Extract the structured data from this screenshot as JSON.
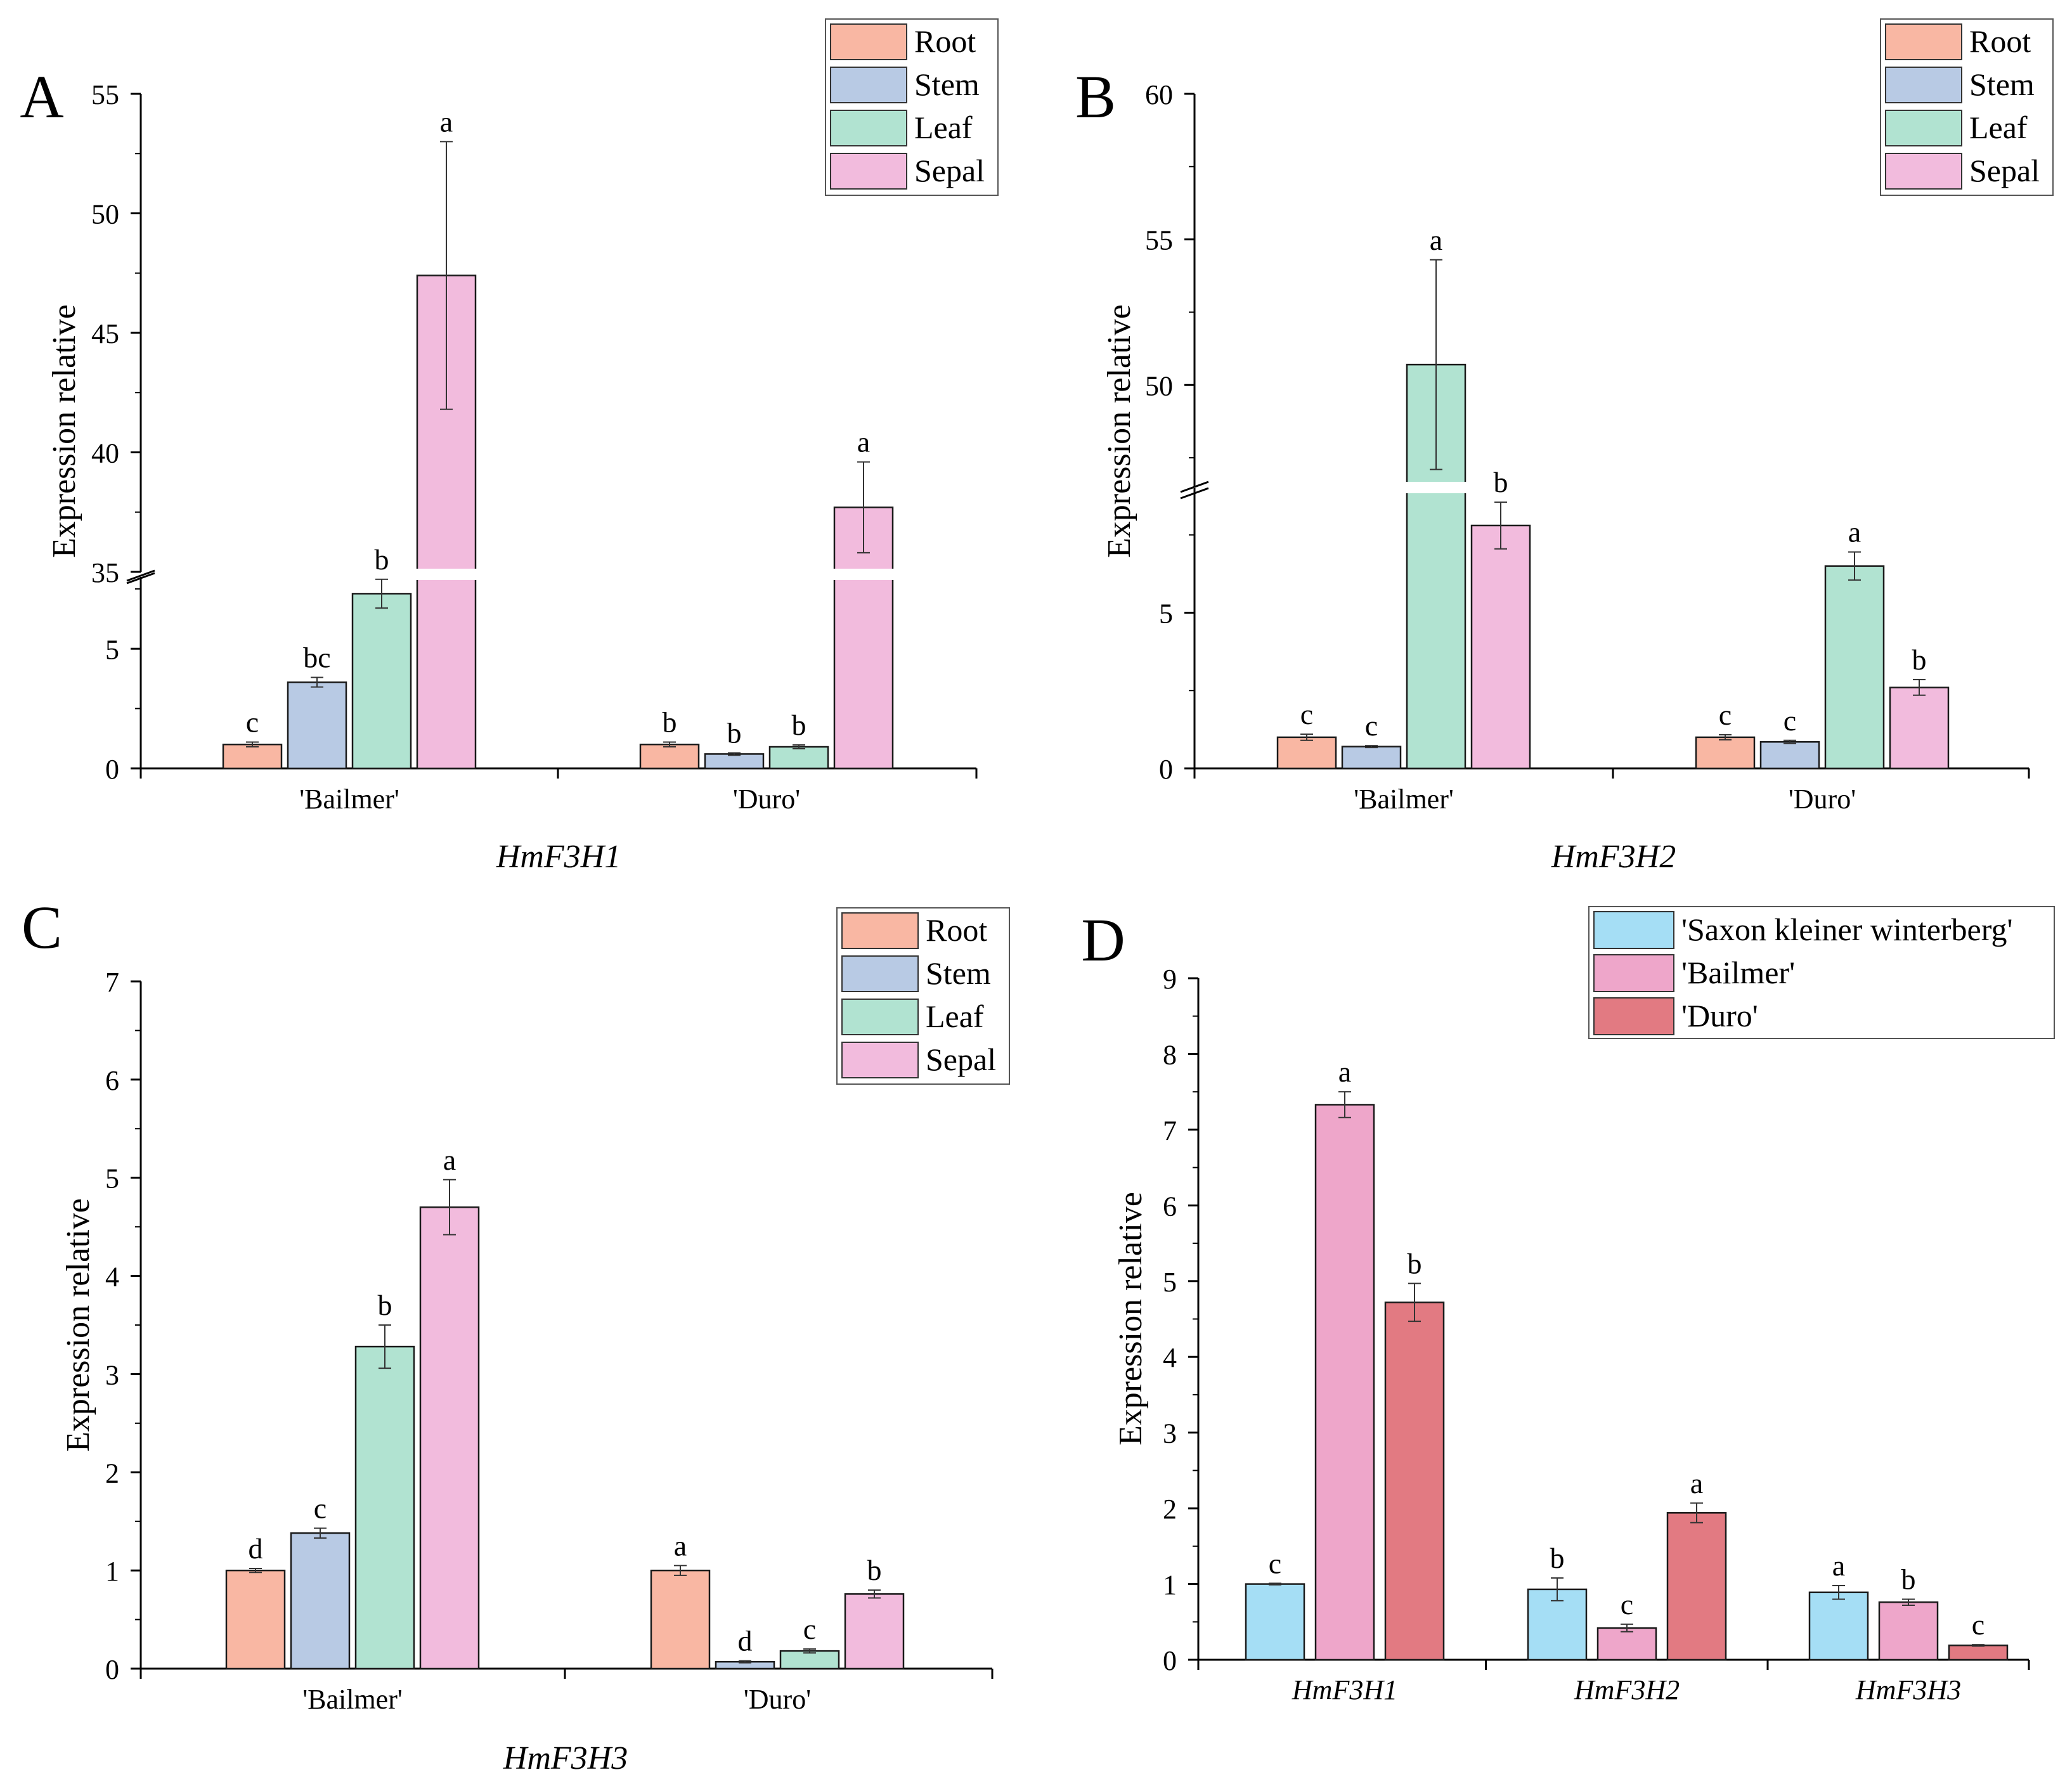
{
  "figure": {
    "description_note": "Four-panel bar chart figure of relative expression levels"
  },
  "colors": {
    "Root": "#f9b7a3",
    "Stem": "#b8cae4",
    "Leaf": "#b1e3d1",
    "Sepal": "#f2bbdd",
    "Saxon": "#a5def5",
    "Bailmer": "#eea6ca",
    "Duro": "#e27a82"
  },
  "chart_data": [
    {
      "id": "A",
      "panel_letter": "A",
      "type": "bar",
      "title": "HmF3H1",
      "ylabel": "Expression relative",
      "xlabel": "",
      "categories": [
        "'Bailmer'",
        "'Duro'"
      ],
      "axis_break": {
        "lower": [
          0,
          8
        ],
        "upper": [
          35,
          55
        ]
      },
      "yticks_lower": [
        "0",
        "5"
      ],
      "yticks_upper": [
        "35",
        "40",
        "45",
        "50",
        "55"
      ],
      "legend": [
        "Root",
        "Stem",
        "Leaf",
        "Sepal"
      ],
      "legend_position": "top-right",
      "series": [
        {
          "name": "Root",
          "values": [
            1.0,
            1.0
          ],
          "errors": [
            0.1,
            0.1
          ],
          "letters": [
            "c",
            "b"
          ]
        },
        {
          "name": "Stem",
          "values": [
            3.6,
            0.6
          ],
          "errors": [
            0.2,
            0.05
          ],
          "letters": [
            "bc",
            "b"
          ]
        },
        {
          "name": "Leaf",
          "values": [
            7.3,
            0.9
          ],
          "errors": [
            0.6,
            0.08
          ],
          "letters": [
            "b",
            "b"
          ]
        },
        {
          "name": "Sepal",
          "values": [
            47.4,
            37.7
          ],
          "errors": [
            5.6,
            1.9
          ],
          "letters": [
            "a",
            "a"
          ]
        }
      ]
    },
    {
      "id": "B",
      "panel_letter": "B",
      "type": "bar",
      "title": "HmF3H2",
      "ylabel": "Expression relative",
      "xlabel": "",
      "categories": [
        "'Bailmer'",
        "'Duro'"
      ],
      "axis_break": {
        "lower": [
          0,
          9
        ],
        "upper": [
          46.5,
          60
        ]
      },
      "yticks_lower": [
        "0",
        "5"
      ],
      "yticks_upper": [
        "50",
        "55",
        "60"
      ],
      "legend": [
        "Root",
        "Stem",
        "Leaf",
        "Sepal"
      ],
      "legend_position": "top-right",
      "series": [
        {
          "name": "Root",
          "values": [
            1.0,
            1.0
          ],
          "errors": [
            0.1,
            0.08
          ],
          "letters": [
            "c",
            "c"
          ]
        },
        {
          "name": "Stem",
          "values": [
            0.7,
            0.85
          ],
          "errors": [
            0.03,
            0.05
          ],
          "letters": [
            "c",
            "c"
          ]
        },
        {
          "name": "Leaf",
          "values": [
            50.7,
            6.5
          ],
          "errors": [
            3.6,
            0.45
          ],
          "letters": [
            "a",
            "a"
          ]
        },
        {
          "name": "Sepal",
          "values": [
            7.8,
            2.6
          ],
          "errors": [
            0.75,
            0.25
          ],
          "letters": [
            "b",
            "b"
          ]
        }
      ]
    },
    {
      "id": "C",
      "panel_letter": "C",
      "type": "bar",
      "title": "HmF3H3",
      "ylabel": "Expression relative",
      "xlabel": "",
      "categories": [
        "'Bailmer'",
        "'Duro'"
      ],
      "ylim": [
        0,
        7
      ],
      "yticks": [
        "0",
        "1",
        "2",
        "3",
        "4",
        "5",
        "6",
        "7"
      ],
      "legend": [
        "Root",
        "Stem",
        "Leaf",
        "Sepal"
      ],
      "legend_position": "top-right",
      "series": [
        {
          "name": "Root",
          "values": [
            1.0,
            1.0
          ],
          "errors": [
            0.02,
            0.05
          ],
          "letters": [
            "d",
            "a"
          ]
        },
        {
          "name": "Stem",
          "values": [
            1.38,
            0.07
          ],
          "errors": [
            0.05,
            0.01
          ],
          "letters": [
            "c",
            "d"
          ]
        },
        {
          "name": "Leaf",
          "values": [
            3.28,
            0.18
          ],
          "errors": [
            0.22,
            0.02
          ],
          "letters": [
            "b",
            "c"
          ]
        },
        {
          "name": "Sepal",
          "values": [
            4.7,
            0.76
          ],
          "errors": [
            0.28,
            0.04
          ],
          "letters": [
            "a",
            "b"
          ]
        }
      ]
    },
    {
      "id": "D",
      "panel_letter": "D",
      "type": "bar",
      "title": "",
      "ylabel": "Expression relative",
      "xlabel": "",
      "categories": [
        "HmF3H1",
        "HmF3H2",
        "HmF3H3"
      ],
      "ylim": [
        0,
        9
      ],
      "yticks": [
        "0",
        "1",
        "2",
        "3",
        "4",
        "5",
        "6",
        "7",
        "8",
        "9"
      ],
      "legend": [
        "'Saxon kleiner winterberg'",
        "'Bailmer'",
        "'Duro'"
      ],
      "legend_position": "top-right",
      "series": [
        {
          "name": "'Saxon kleiner winterberg'",
          "values": [
            1.0,
            0.93,
            0.89
          ],
          "errors": [
            0.01,
            0.15,
            0.09
          ],
          "letters": [
            "c",
            "b",
            "a"
          ]
        },
        {
          "name": "'Bailmer'",
          "values": [
            7.33,
            0.42,
            0.76
          ],
          "errors": [
            0.17,
            0.05,
            0.04
          ],
          "letters": [
            "a",
            "c",
            "b"
          ]
        },
        {
          "name": "'Duro'",
          "values": [
            4.72,
            1.94,
            0.19
          ],
          "errors": [
            0.25,
            0.13,
            0.01
          ],
          "letters": [
            "b",
            "a",
            "c"
          ]
        }
      ]
    }
  ]
}
